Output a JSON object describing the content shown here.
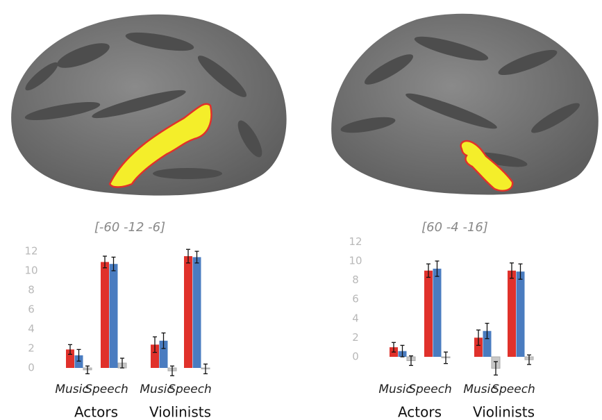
{
  "chart_data": [
    {
      "type": "bar",
      "title": "[-60 -12 -6]",
      "categories": [
        "Music",
        "Speech",
        "Music",
        "Speech"
      ],
      "groups": [
        "Actors",
        "Violinists"
      ],
      "series": [
        {
          "color": "#e0312b",
          "values": [
            1.9,
            10.9,
            2.4,
            11.5
          ],
          "errors": [
            0.5,
            0.6,
            0.8,
            0.7
          ]
        },
        {
          "color": "#4a7cc0",
          "values": [
            1.3,
            10.7,
            2.8,
            11.4
          ],
          "errors": [
            0.6,
            0.7,
            0.8,
            0.6
          ]
        },
        {
          "color": "#c8c8c8",
          "values": [
            -0.2,
            0.5,
            -0.3,
            -0.1
          ],
          "errors": [
            0.4,
            0.5,
            0.5,
            0.5
          ]
        }
      ],
      "ylim": [
        -1.5,
        12.5
      ],
      "yticks": [
        0,
        2,
        4,
        6,
        8,
        10,
        12
      ]
    },
    {
      "type": "bar",
      "title": "[60 -4 -16]",
      "categories": [
        "Music",
        "Speech",
        "Music",
        "Speech"
      ],
      "groups": [
        "Actors",
        "Violinists"
      ],
      "series": [
        {
          "color": "#e0312b",
          "values": [
            1.0,
            9.0,
            2.0,
            9.0
          ],
          "errors": [
            0.5,
            0.7,
            0.8,
            0.8
          ]
        },
        {
          "color": "#4a7cc0",
          "values": [
            0.6,
            9.2,
            2.7,
            8.9
          ],
          "errors": [
            0.6,
            0.8,
            0.8,
            0.8
          ]
        },
        {
          "color": "#c8c8c8",
          "values": [
            -0.4,
            -0.1,
            -1.2,
            -0.3
          ],
          "errors": [
            0.5,
            0.6,
            0.7,
            0.5
          ]
        }
      ],
      "ylim": [
        -2,
        12.5
      ],
      "yticks": [
        0,
        2,
        4,
        6,
        8,
        10,
        12
      ]
    }
  ]
}
